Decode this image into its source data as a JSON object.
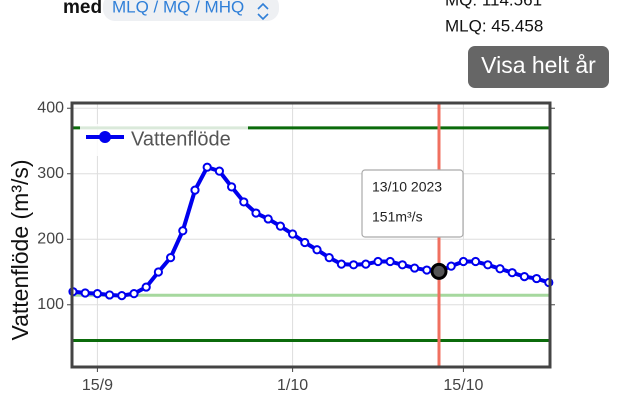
{
  "header": {
    "prefix": "med",
    "selector": "MLQ / MQ / MHQ",
    "stats": [
      "MQ: 114.561",
      "MLQ: 45.458"
    ],
    "button": "Visa helt år"
  },
  "chart_data": {
    "type": "line",
    "ylabel": "Vattenflöde (m³/s)",
    "categories": [
      null,
      null,
      "15/9",
      null,
      null,
      null,
      null,
      null,
      null,
      null,
      null,
      null,
      null,
      null,
      null,
      null,
      null,
      null,
      "1/10",
      null,
      null,
      null,
      null,
      null,
      null,
      null,
      null,
      null,
      null,
      null,
      null,
      null,
      "15/10",
      null,
      null,
      null,
      null,
      null,
      null,
      null
    ],
    "series": [
      {
        "name": "Vattenflöde",
        "color": "#0000ee",
        "values": [
          120,
          118,
          117,
          115,
          114,
          117,
          127,
          150,
          172,
          213,
          275,
          310,
          304,
          280,
          257,
          240,
          231,
          220,
          208,
          195,
          184,
          172,
          162,
          161,
          162,
          166,
          166,
          161,
          156,
          153,
          151,
          159,
          166,
          166,
          161,
          155,
          149,
          143,
          140,
          134
        ]
      }
    ],
    "ylim": [
      5,
      408
    ],
    "yticks": [
      100,
      200,
      300,
      400
    ],
    "grid": true,
    "legend": "top-left",
    "reference_lines": [
      {
        "value": 370,
        "color": "#0b6b0b"
      },
      {
        "value": 114.561,
        "color": "#a6d89e"
      },
      {
        "value": 45.458,
        "color": "#0b6b0b"
      }
    ],
    "highlight": {
      "index": 30,
      "color": "#f07060",
      "date": "13/10 2023",
      "value_label": "151m³/s"
    }
  }
}
